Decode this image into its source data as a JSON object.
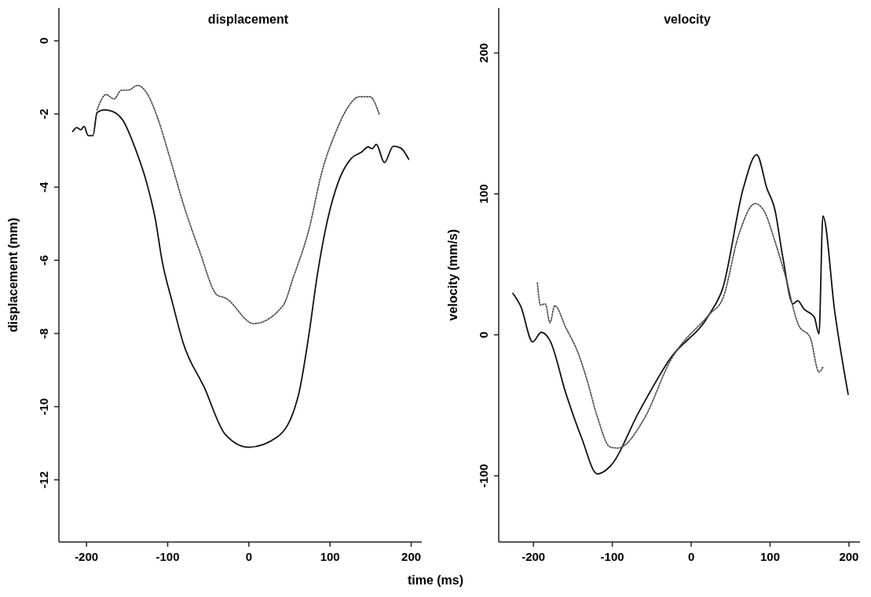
{
  "chart_data": [
    {
      "type": "line",
      "title": "displacement",
      "xlabel": "time (ms)",
      "ylabel": "displacement (mm)",
      "xlim": [
        -234,
        213
      ],
      "xticks": [
        -200,
        -100,
        0,
        100,
        200
      ],
      "ylim": [
        -13.7,
        0.9
      ],
      "yticks": [
        0,
        -2,
        -4,
        -6,
        -8,
        -10,
        -12
      ],
      "grid": false,
      "marker": "none",
      "series": [
        {
          "color": "#111111",
          "line_style": "solid",
          "x": [
            -217,
            -212,
            -207,
            -203,
            -198,
            -192,
            -187,
            -178,
            -168,
            -155,
            -139,
            -126,
            -115,
            -107,
            -94,
            -81,
            -55,
            -29,
            0,
            35,
            61,
            74,
            84,
            94,
            110,
            126,
            139,
            147,
            152,
            157,
            167,
            178,
            187,
            197
          ],
          "values": [
            -2.48,
            -2.37,
            -2.43,
            -2.34,
            -2.59,
            -2.59,
            -1.96,
            -1.89,
            -1.93,
            -2.18,
            -3.0,
            -3.87,
            -4.9,
            -6.0,
            -7.17,
            -8.25,
            -9.47,
            -10.76,
            -11.11,
            -10.83,
            -9.69,
            -8.03,
            -6.45,
            -5.2,
            -3.87,
            -3.22,
            -3.04,
            -2.9,
            -2.95,
            -2.83,
            -3.33,
            -2.88,
            -2.93,
            -3.24
          ]
        },
        {
          "color": "#555555",
          "line_style": "dotted",
          "x": [
            -187,
            -176,
            -166,
            -157,
            -149,
            -137,
            -126,
            -113,
            -97,
            -81,
            -61,
            -39,
            -29,
            6,
            42,
            55,
            74,
            90,
            107,
            119,
            136,
            149,
            161
          ],
          "values": [
            -1.89,
            -1.47,
            -1.59,
            -1.35,
            -1.35,
            -1.22,
            -1.42,
            -2.07,
            -3.22,
            -4.44,
            -5.73,
            -6.95,
            -7.03,
            -7.73,
            -7.24,
            -6.45,
            -5.16,
            -3.58,
            -2.5,
            -1.93,
            -1.53,
            -1.53,
            -2.03
          ]
        }
      ]
    },
    {
      "type": "line",
      "title": "velocity",
      "ylabel": "velocity (mm/s)",
      "xlim": [
        -244,
        214
      ],
      "xticks": [
        -200,
        -100,
        0,
        100,
        200
      ],
      "ylim": [
        -147,
        232
      ],
      "yticks": [
        200,
        100,
        0,
        -100
      ],
      "grid": false,
      "marker": "none",
      "series": [
        {
          "color": "#111111",
          "line_style": "solid",
          "x": [
            -226,
            -216,
            -201,
            -190,
            -179,
            -159,
            -139,
            -119,
            -103,
            -66,
            -27,
            23,
            40,
            66,
            83,
            96,
            106,
            116,
            129,
            135,
            143,
            156,
            162,
            167,
            182,
            199
          ],
          "values": [
            29.4,
            20.1,
            -5.0,
            1.8,
            -4.1,
            -41.3,
            -73.0,
            -98.7,
            -93.5,
            -54.4,
            -17.1,
            14.5,
            33.1,
            103.9,
            127.9,
            103.9,
            89,
            55.5,
            22,
            24.2,
            18.3,
            12.7,
            0.6,
            84.4,
            16.4,
            -42.3
          ]
        },
        {
          "color": "#555555",
          "line_style": "dotted",
          "x": [
            -195,
            -191,
            -185,
            -179,
            -173,
            -159,
            -143,
            -133,
            -119,
            -103,
            -93,
            -60,
            -27,
            23,
            40,
            60,
            81,
            93,
            106,
            119,
            136,
            151,
            162,
            167
          ],
          "values": [
            36.9,
            21.1,
            22,
            8.6,
            20.7,
            5.2,
            -13.4,
            -30.2,
            -58.1,
            -79.5,
            -80.4,
            -59.9,
            -19,
            14.5,
            25.7,
            70.4,
            93.1,
            87.2,
            66.6,
            42.5,
            7.1,
            -2.2,
            -26.4,
            -22.7
          ]
        }
      ]
    }
  ]
}
